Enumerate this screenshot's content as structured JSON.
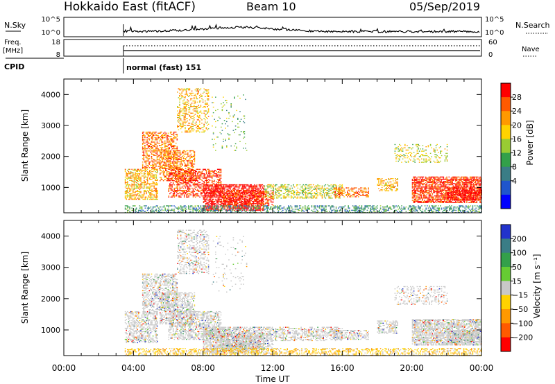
{
  "header": {
    "station": "Hokkaido East (fitACF)",
    "beam": "Beam 10",
    "date": "05/Sep/2019"
  },
  "strips": {
    "nsky_label": "N.Sky",
    "nsearch_label": "N.Search",
    "nsky_ticks": [
      "10^5",
      "10^0"
    ],
    "nsearch_ticks": [
      "10^5",
      "10^0"
    ],
    "freq_label_1": "Freq.",
    "freq_label_2": "[MHz]",
    "freq_ticks": [
      "18",
      "8"
    ],
    "nave_label": "Nave",
    "nave_ticks": [
      "60",
      "0"
    ],
    "cpid_label": "CPID",
    "cpid_text": "normal (fast) 151"
  },
  "chart_data": [
    {
      "type": "heatmap",
      "name": "power",
      "ylabel": "Slant Range [km]",
      "xlabel": "Time UT",
      "ylim": [
        180,
        4500
      ],
      "yticks": [
        "1000",
        "2000",
        "3000",
        "4000"
      ],
      "xticks": [
        "00:00",
        "04:00",
        "08:00",
        "12:00",
        "16:00",
        "20:00",
        "00:00"
      ],
      "colorbar_label": "Power [dB]",
      "colorbar_ticks": [
        "28",
        "24",
        "20",
        "16",
        "12",
        "8",
        "4"
      ],
      "colorbar_colors": [
        "#ff0000",
        "#ff5a00",
        "#ff9900",
        "#ffd200",
        "#99cc33",
        "#33a04a",
        "#3a7d86",
        "#1f55cc",
        "#0000ff"
      ]
    },
    {
      "type": "heatmap",
      "name": "velocity",
      "ylabel": "Slant Range [km]",
      "xlabel": "Time UT",
      "ylim": [
        180,
        4500
      ],
      "yticks": [
        "1000",
        "2000",
        "3000",
        "4000"
      ],
      "xticks": [
        "00:00",
        "04:00",
        "08:00",
        "12:00",
        "16:00",
        "20:00",
        "00:00"
      ],
      "colorbar_label": "Velocity [m s⁻¹]",
      "colorbar_ticks": [
        "200",
        "100",
        "50",
        "15",
        "−15",
        "−50",
        "−100",
        "−200"
      ],
      "colorbar_colors": [
        "#2233cc",
        "#3a7d86",
        "#33a04a",
        "#66cc33",
        "#c8c8c8",
        "#ffd200",
        "#ff9900",
        "#ff5a00",
        "#ff0000"
      ]
    }
  ],
  "xaxis_title": "Time UT"
}
